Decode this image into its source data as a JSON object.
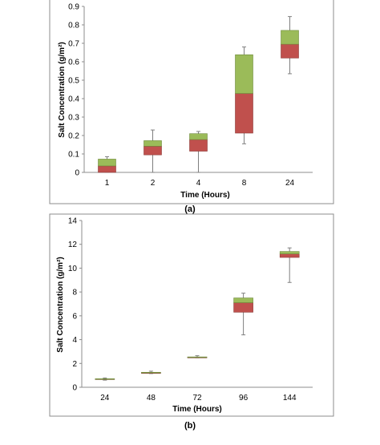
{
  "chart_data": [
    {
      "type": "box",
      "panel_label": "(a)",
      "xlabel": "Time (Hours)",
      "ylabel": "Salt Concentration (g/m²)",
      "ylim": [
        0,
        0.9
      ],
      "yticks": [
        "0",
        "0.1",
        "0.2",
        "0.3",
        "0.4",
        "0.5",
        "0.6",
        "0.7",
        "0.8",
        "0.9"
      ],
      "categories": [
        "1",
        "2",
        "4",
        "8",
        "24"
      ],
      "boxes": [
        {
          "min": 0.0,
          "q1": 0.0,
          "median": 0.035,
          "q3": 0.072,
          "max": 0.085
        },
        {
          "min": 0.0,
          "q1": 0.095,
          "median": 0.142,
          "q3": 0.172,
          "max": 0.23
        },
        {
          "min": 0.0,
          "q1": 0.115,
          "median": 0.178,
          "q3": 0.21,
          "max": 0.222
        },
        {
          "min": 0.155,
          "q1": 0.213,
          "median": 0.428,
          "q3": 0.638,
          "max": 0.68
        },
        {
          "min": 0.535,
          "q1": 0.62,
          "median": 0.695,
          "q3": 0.77,
          "max": 0.845
        }
      ],
      "colors": {
        "lower_box": "#c0504d",
        "upper_box": "#9bbb59"
      },
      "grid": false
    },
    {
      "type": "box",
      "panel_label": "(b)",
      "xlabel": "Time (Hours)",
      "ylabel": "Salt Concentration (g/m²)",
      "ylim": [
        0,
        14
      ],
      "yticks": [
        "0",
        "2",
        "4",
        "6",
        "8",
        "10",
        "12",
        "14"
      ],
      "categories": [
        "24",
        "48",
        "72",
        "96",
        "144"
      ],
      "boxes": [
        {
          "min": 0.6,
          "q1": 0.65,
          "median": 0.7,
          "q3": 0.72,
          "max": 0.78
        },
        {
          "min": 1.15,
          "q1": 1.17,
          "median": 1.22,
          "q3": 1.26,
          "max": 1.35
        },
        {
          "min": 2.48,
          "q1": 2.5,
          "median": 2.52,
          "q3": 2.55,
          "max": 2.65
        },
        {
          "min": 4.4,
          "q1": 6.3,
          "median": 7.1,
          "q3": 7.5,
          "max": 7.9
        },
        {
          "min": 8.8,
          "q1": 10.9,
          "median": 11.2,
          "q3": 11.4,
          "max": 11.7
        }
      ],
      "colors": {
        "lower_box": "#c0504d",
        "upper_box": "#9bbb59"
      },
      "grid": false
    }
  ]
}
